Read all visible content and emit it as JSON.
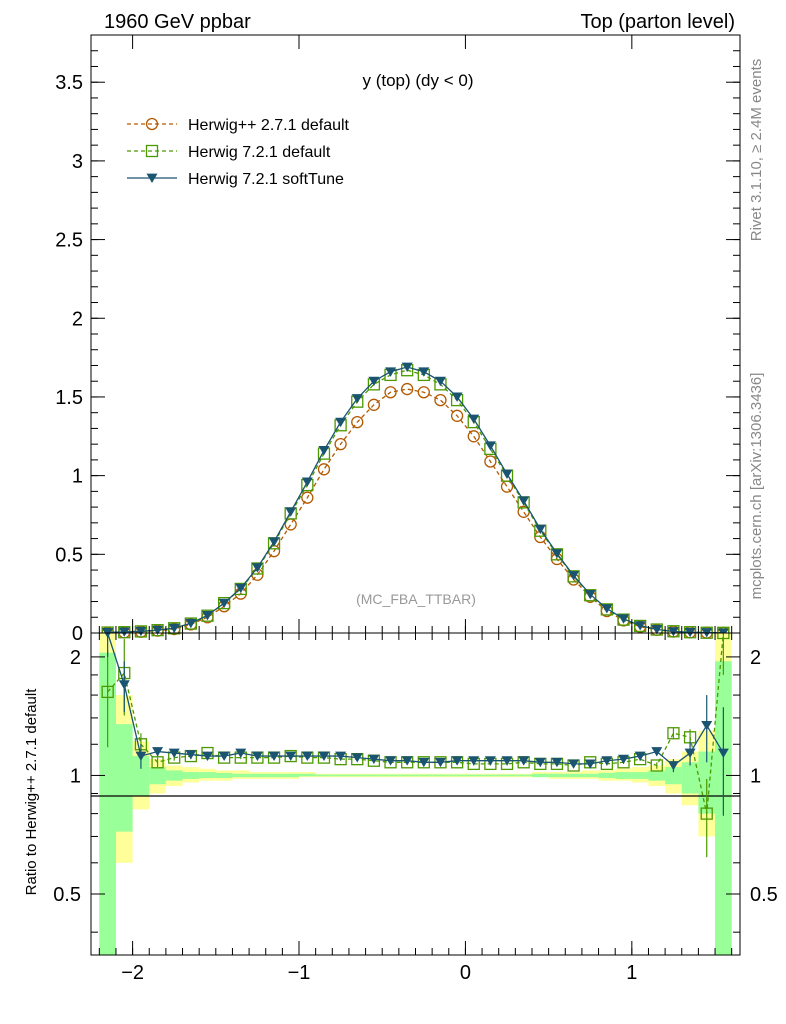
{
  "header": {
    "left_label": "1960 GeV ppbar",
    "right_label": "Top (parton level)"
  },
  "side_labels": {
    "rivet": "Rivet 3.1.10, ≥ 2.4M events",
    "mcplots": "mcplots.cern.ch [arXiv:1306.3436]"
  },
  "chart_data": [
    {
      "type": "line",
      "title": "y (top) (dy < 0)",
      "watermark": "(MC_FBA_TTBAR)",
      "xlabel": "",
      "ylabel": "",
      "xlim": [
        -2.25,
        1.65
      ],
      "ylim": [
        0,
        3.8
      ],
      "grid": false,
      "legend_position": "top-left",
      "x_ticks": [
        "−2",
        "−1",
        "0",
        "1"
      ],
      "y_ticks": [
        "0",
        "0.5",
        "1",
        "1.5",
        "2",
        "2.5",
        "3",
        "3.5"
      ],
      "x": [
        -2.15,
        -2.05,
        -1.95,
        -1.85,
        -1.75,
        -1.65,
        -1.55,
        -1.45,
        -1.35,
        -1.25,
        -1.15,
        -1.05,
        -0.95,
        -0.85,
        -0.75,
        -0.65,
        -0.55,
        -0.45,
        -0.35,
        -0.25,
        -0.15,
        -0.05,
        0.05,
        0.15,
        0.25,
        0.35,
        0.45,
        0.55,
        0.65,
        0.75,
        0.85,
        0.95,
        1.05,
        1.15,
        1.25,
        1.35,
        1.45,
        1.55
      ],
      "series": [
        {
          "name": "Herwig++ 2.7.1 default",
          "color": "#b35900",
          "marker": "open-circle",
          "line": "dashed",
          "values": [
            0.002,
            0.004,
            0.008,
            0.015,
            0.025,
            0.055,
            0.1,
            0.17,
            0.25,
            0.37,
            0.52,
            0.69,
            0.86,
            1.04,
            1.2,
            1.34,
            1.45,
            1.53,
            1.55,
            1.53,
            1.48,
            1.38,
            1.25,
            1.09,
            0.93,
            0.77,
            0.61,
            0.47,
            0.34,
            0.23,
            0.14,
            0.08,
            0.04,
            0.02,
            0.009,
            0.004,
            0.002,
            0.001
          ]
        },
        {
          "name": "Herwig 7.2.1 default",
          "color": "#4c9900",
          "marker": "open-square",
          "line": "dashed",
          "values": [
            0.003,
            0.005,
            0.01,
            0.018,
            0.03,
            0.06,
            0.11,
            0.19,
            0.28,
            0.41,
            0.57,
            0.76,
            0.94,
            1.14,
            1.32,
            1.47,
            1.58,
            1.64,
            1.67,
            1.64,
            1.58,
            1.48,
            1.34,
            1.17,
            1.0,
            0.83,
            0.65,
            0.5,
            0.36,
            0.24,
            0.15,
            0.085,
            0.045,
            0.022,
            0.011,
            0.005,
            0.0016,
            0.001
          ]
        },
        {
          "name": "Herwig 7.2.1 softTune",
          "color": "#1a5470",
          "marker": "filled-triangle-down",
          "line": "solid",
          "values": [
            0.004,
            0.007,
            0.011,
            0.018,
            0.031,
            0.062,
            0.112,
            0.19,
            0.285,
            0.415,
            0.58,
            0.77,
            0.96,
            1.16,
            1.34,
            1.49,
            1.6,
            1.66,
            1.69,
            1.66,
            1.6,
            1.5,
            1.36,
            1.19,
            1.01,
            0.84,
            0.66,
            0.505,
            0.365,
            0.245,
            0.155,
            0.09,
            0.047,
            0.023,
            0.0095,
            0.0046,
            0.0027,
            0.0011
          ]
        }
      ]
    },
    {
      "type": "line",
      "title": "",
      "xlabel": "",
      "ylabel": "Ratio to Herwig++ 2.7.1 default",
      "xlim": [
        -2.25,
        1.65
      ],
      "ylim": [
        0.35,
        2.3
      ],
      "y_scale": "log",
      "grid": false,
      "reference_line": 1,
      "x_ticks": [
        "−2",
        "−1",
        "0",
        "1"
      ],
      "y_ticks": [
        "0.5",
        "1",
        "2"
      ],
      "x": [
        -2.15,
        -2.05,
        -1.95,
        -1.85,
        -1.75,
        -1.65,
        -1.55,
        -1.45,
        -1.35,
        -1.25,
        -1.15,
        -1.05,
        -0.95,
        -0.85,
        -0.75,
        -0.65,
        -0.55,
        -0.45,
        -0.35,
        -0.25,
        -0.15,
        -0.05,
        0.05,
        0.15,
        0.25,
        0.35,
        0.45,
        0.55,
        0.65,
        0.75,
        0.85,
        0.95,
        1.05,
        1.15,
        1.25,
        1.35,
        1.45,
        1.55
      ],
      "bands": {
        "yellow": {
          "color": "#ffff99",
          "high": [
            2.3,
            1.6,
            1.22,
            1.1,
            1.06,
            1.05,
            1.04,
            1.03,
            1.03,
            1.02,
            1.02,
            1.02,
            1.02,
            1.01,
            1.01,
            1.01,
            1.01,
            1.01,
            1.01,
            1.01,
            1.01,
            1.01,
            1.01,
            1.01,
            1.01,
            1.01,
            1.02,
            1.02,
            1.02,
            1.03,
            1.03,
            1.04,
            1.05,
            1.06,
            1.1,
            1.15,
            1.3,
            2.3
          ],
          "low": [
            0.35,
            0.6,
            0.82,
            0.9,
            0.94,
            0.96,
            0.97,
            0.97,
            0.98,
            0.98,
            0.98,
            0.98,
            0.99,
            0.99,
            0.99,
            0.99,
            0.99,
            0.99,
            0.99,
            0.99,
            0.99,
            0.99,
            0.99,
            0.99,
            0.99,
            0.99,
            0.99,
            0.98,
            0.98,
            0.98,
            0.97,
            0.97,
            0.96,
            0.94,
            0.9,
            0.84,
            0.7,
            0.35
          ]
        },
        "green": {
          "color": "#99ff99",
          "high": [
            2.05,
            1.35,
            1.12,
            1.05,
            1.03,
            1.02,
            1.02,
            1.015,
            1.01,
            1.01,
            1.01,
            1.01,
            1.01,
            1.005,
            1.005,
            1.005,
            1.005,
            1.005,
            1.005,
            1.005,
            1.005,
            1.005,
            1.005,
            1.005,
            1.005,
            1.005,
            1.01,
            1.01,
            1.01,
            1.01,
            1.015,
            1.02,
            1.02,
            1.03,
            1.05,
            1.08,
            1.15,
            1.95
          ],
          "low": [
            0.35,
            0.72,
            0.89,
            0.95,
            0.97,
            0.98,
            0.985,
            0.985,
            0.99,
            0.99,
            0.99,
            0.99,
            0.995,
            0.995,
            0.995,
            0.995,
            0.995,
            0.995,
            0.995,
            0.995,
            0.995,
            0.995,
            0.995,
            0.995,
            0.995,
            0.995,
            0.99,
            0.99,
            0.99,
            0.99,
            0.985,
            0.98,
            0.98,
            0.97,
            0.95,
            0.9,
            0.8,
            0.35
          ]
        }
      },
      "series": [
        {
          "name": "Herwig 7.2.1 default",
          "color": "#4c9900",
          "marker": "open-square",
          "line": "dashed",
          "values": [
            1.63,
            1.82,
            1.2,
            1.08,
            1.11,
            1.12,
            1.14,
            1.11,
            1.11,
            1.11,
            1.11,
            1.12,
            1.11,
            1.11,
            1.1,
            1.1,
            1.09,
            1.08,
            1.08,
            1.08,
            1.08,
            1.08,
            1.07,
            1.07,
            1.07,
            1.08,
            1.07,
            1.07,
            1.06,
            1.08,
            1.07,
            1.08,
            1.1,
            1.06,
            1.28,
            1.25,
            0.8,
            2.3
          ],
          "err": [
            0.45,
            0.4,
            0.08,
            0.03,
            0.02,
            0.02,
            0.01,
            0.01,
            0.01,
            0.01,
            0.01,
            0.01,
            0.01,
            0.01,
            0.01,
            0.01,
            0.01,
            0.01,
            0.01,
            0.01,
            0.01,
            0.01,
            0.01,
            0.01,
            0.01,
            0.01,
            0.01,
            0.01,
            0.01,
            0.01,
            0.01,
            0.01,
            0.01,
            0.02,
            0.04,
            0.06,
            0.18,
            0.5
          ]
        },
        {
          "name": "Herwig 7.2.1 softTune",
          "color": "#1a5470",
          "marker": "filled-triangle-down",
          "line": "solid",
          "values": [
            2.3,
            1.7,
            1.12,
            1.15,
            1.14,
            1.13,
            1.12,
            1.12,
            1.14,
            1.12,
            1.12,
            1.12,
            1.12,
            1.12,
            1.12,
            1.11,
            1.1,
            1.09,
            1.09,
            1.08,
            1.08,
            1.09,
            1.09,
            1.09,
            1.09,
            1.09,
            1.08,
            1.08,
            1.07,
            1.07,
            1.09,
            1.1,
            1.12,
            1.15,
            1.06,
            1.14,
            1.34,
            1.14
          ],
          "err": [
            0.3,
            0.25,
            0.08,
            0.03,
            0.02,
            0.02,
            0.01,
            0.01,
            0.01,
            0.01,
            0.01,
            0.01,
            0.01,
            0.01,
            0.01,
            0.01,
            0.01,
            0.01,
            0.01,
            0.01,
            0.01,
            0.01,
            0.01,
            0.01,
            0.01,
            0.01,
            0.01,
            0.01,
            0.01,
            0.01,
            0.01,
            0.01,
            0.01,
            0.02,
            0.04,
            0.08,
            0.26,
            0.35
          ]
        }
      ]
    }
  ]
}
